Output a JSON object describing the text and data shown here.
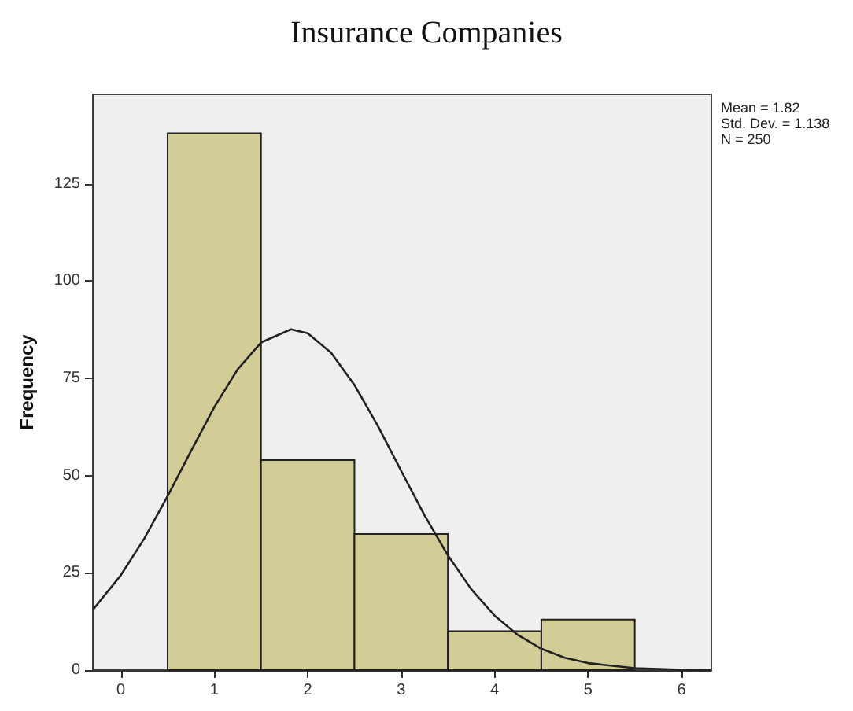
{
  "chart_data": {
    "type": "histogram",
    "title": "Insurance Companies",
    "ylabel": "Frequency",
    "annotations": [
      "Mean = 1.82",
      "Std. Dev. = 1.138",
      "N = 250"
    ],
    "bins": [
      0.5,
      1.5,
      2.5,
      3.5,
      4.5,
      5.5
    ],
    "values": [
      138,
      54,
      35,
      10,
      13
    ],
    "color": "#d2cd96",
    "series": [
      {
        "type": "line",
        "color": "#222222",
        "x": [
          -0.3,
          0,
          0.25,
          0.5,
          0.75,
          1,
          1.25,
          1.5,
          1.82,
          2,
          2.25,
          2.5,
          2.75,
          3,
          3.25,
          3.5,
          3.75,
          4,
          4.25,
          4.5,
          4.75,
          5,
          5.5,
          6,
          6.32
        ],
        "values": [
          15.5,
          24.4,
          33.8,
          44.7,
          56.3,
          67.6,
          77.3,
          84.2,
          87.6,
          86.6,
          81.6,
          73.3,
          62.8,
          51.2,
          39.8,
          29.5,
          20.8,
          14,
          9,
          5.5,
          3.2,
          1.8,
          0.5,
          0.1,
          0
        ]
      }
    ],
    "xlim": [
      -0.3,
      6.32
    ],
    "xticks": [
      0,
      1,
      2,
      3,
      4,
      5,
      6
    ],
    "ylim": [
      0,
      148
    ],
    "yticks": [
      0,
      25,
      50,
      75,
      100,
      125
    ],
    "marker": "none",
    "line_style": "solid"
  }
}
